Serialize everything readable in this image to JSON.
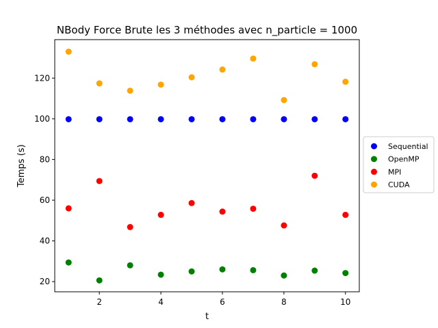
{
  "chart_data": {
    "type": "scatter",
    "title": "NBody Force Brute les 3 méthodes avec n_particle = 1000",
    "xlabel": "t",
    "ylabel": "Temps (s)",
    "xlim": [
      0.55,
      10.45
    ],
    "ylim": [
      15.0,
      138.9
    ],
    "xticks": [
      2,
      4,
      6,
      8,
      10
    ],
    "yticks": [
      20,
      40,
      60,
      80,
      100,
      120
    ],
    "grid": false,
    "legend_position": "right-outside",
    "x": [
      1,
      2,
      3,
      4,
      5,
      6,
      7,
      8,
      9,
      10
    ],
    "series": [
      {
        "name": "Sequential",
        "color": "#0000ff",
        "values": [
          99.8,
          99.8,
          99.8,
          99.8,
          99.8,
          99.8,
          99.8,
          99.8,
          99.8,
          99.8
        ]
      },
      {
        "name": "OpenMP",
        "color": "#008000",
        "values": [
          29.4,
          20.6,
          28.0,
          23.4,
          25.0,
          26.0,
          25.6,
          23.0,
          25.4,
          24.2
        ]
      },
      {
        "name": "MPI",
        "color": "#ff0000",
        "values": [
          56.0,
          69.4,
          46.8,
          52.8,
          58.6,
          54.4,
          55.8,
          47.6,
          72.0,
          52.8
        ]
      },
      {
        "name": "CUDA",
        "color": "#ffa500",
        "values": [
          133.0,
          117.4,
          113.8,
          116.8,
          120.4,
          124.2,
          129.6,
          109.2,
          126.8,
          118.2
        ]
      }
    ]
  }
}
